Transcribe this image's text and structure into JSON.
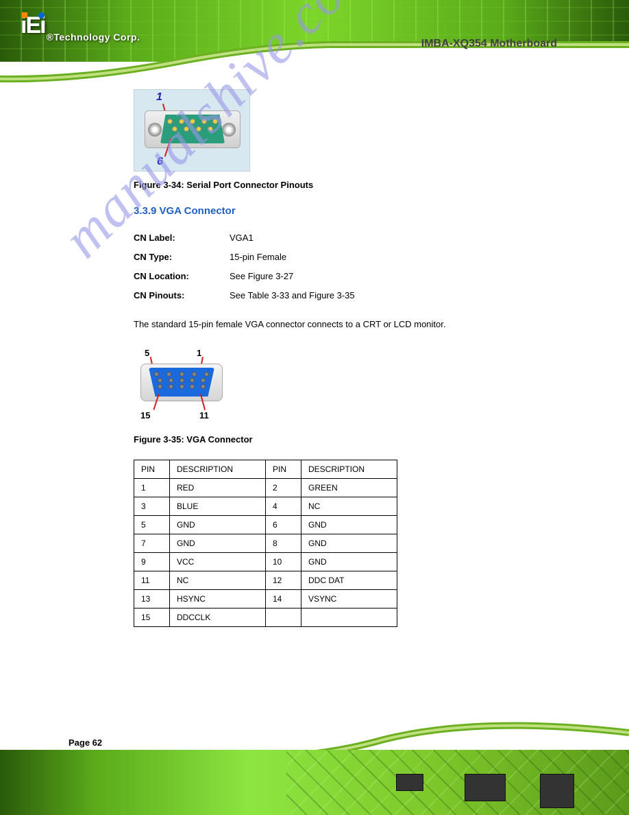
{
  "logo": {
    "text": "iEi",
    "tagline": "®Technology Corp."
  },
  "doc_title": "IMBA-XQ354 Motherboard",
  "figure1": {
    "pin_top": "1",
    "pin_bottom": "6",
    "caption": "Figure 3-34: Serial Port Connector Pinouts"
  },
  "section": {
    "number": "3.3.9",
    "title": "VGA Connector"
  },
  "cn_info": {
    "label_label": "CN Label:",
    "label_value": "VGA1",
    "type_label": "CN Type:",
    "type_value": "15-pin Female",
    "loc_label": "CN Location:",
    "loc_value": "See Figure 3-27",
    "pin_label": "CN Pinouts:",
    "pin_value": "See Table 3-33 and Figure 3-35"
  },
  "body_text": "The standard 15-pin female VGA connector connects to a CRT or LCD monitor.",
  "vga_labels": {
    "tl": "5",
    "tr": "1",
    "bl": "15",
    "br": "11"
  },
  "figure2_caption": "Figure 3-35: VGA Connector",
  "table": {
    "headers": [
      "PIN",
      "DESCRIPTION",
      "PIN",
      "DESCRIPTION"
    ],
    "rows": [
      [
        "1",
        "RED",
        "2",
        "GREEN"
      ],
      [
        "3",
        "BLUE",
        "4",
        "NC"
      ],
      [
        "5",
        "GND",
        "6",
        "GND"
      ],
      [
        "7",
        "GND",
        "8",
        "GND"
      ],
      [
        "9",
        "VCC",
        "10",
        "GND"
      ],
      [
        "11",
        "NC",
        "12",
        "DDC DAT"
      ],
      [
        "13",
        "HSYNC",
        "14",
        "VSYNC"
      ],
      [
        "15",
        "DDCCLK",
        "",
        ""
      ]
    ]
  },
  "watermark": "manualshive.com",
  "page_number": "Page 62",
  "colors": {
    "heading": "#2060c0",
    "pin_label": "#2020c0",
    "pin_line": "#d02020",
    "db9_green": "#2a9d7a",
    "vga_blue": "#1a6add",
    "watermark": "#9898e8"
  }
}
